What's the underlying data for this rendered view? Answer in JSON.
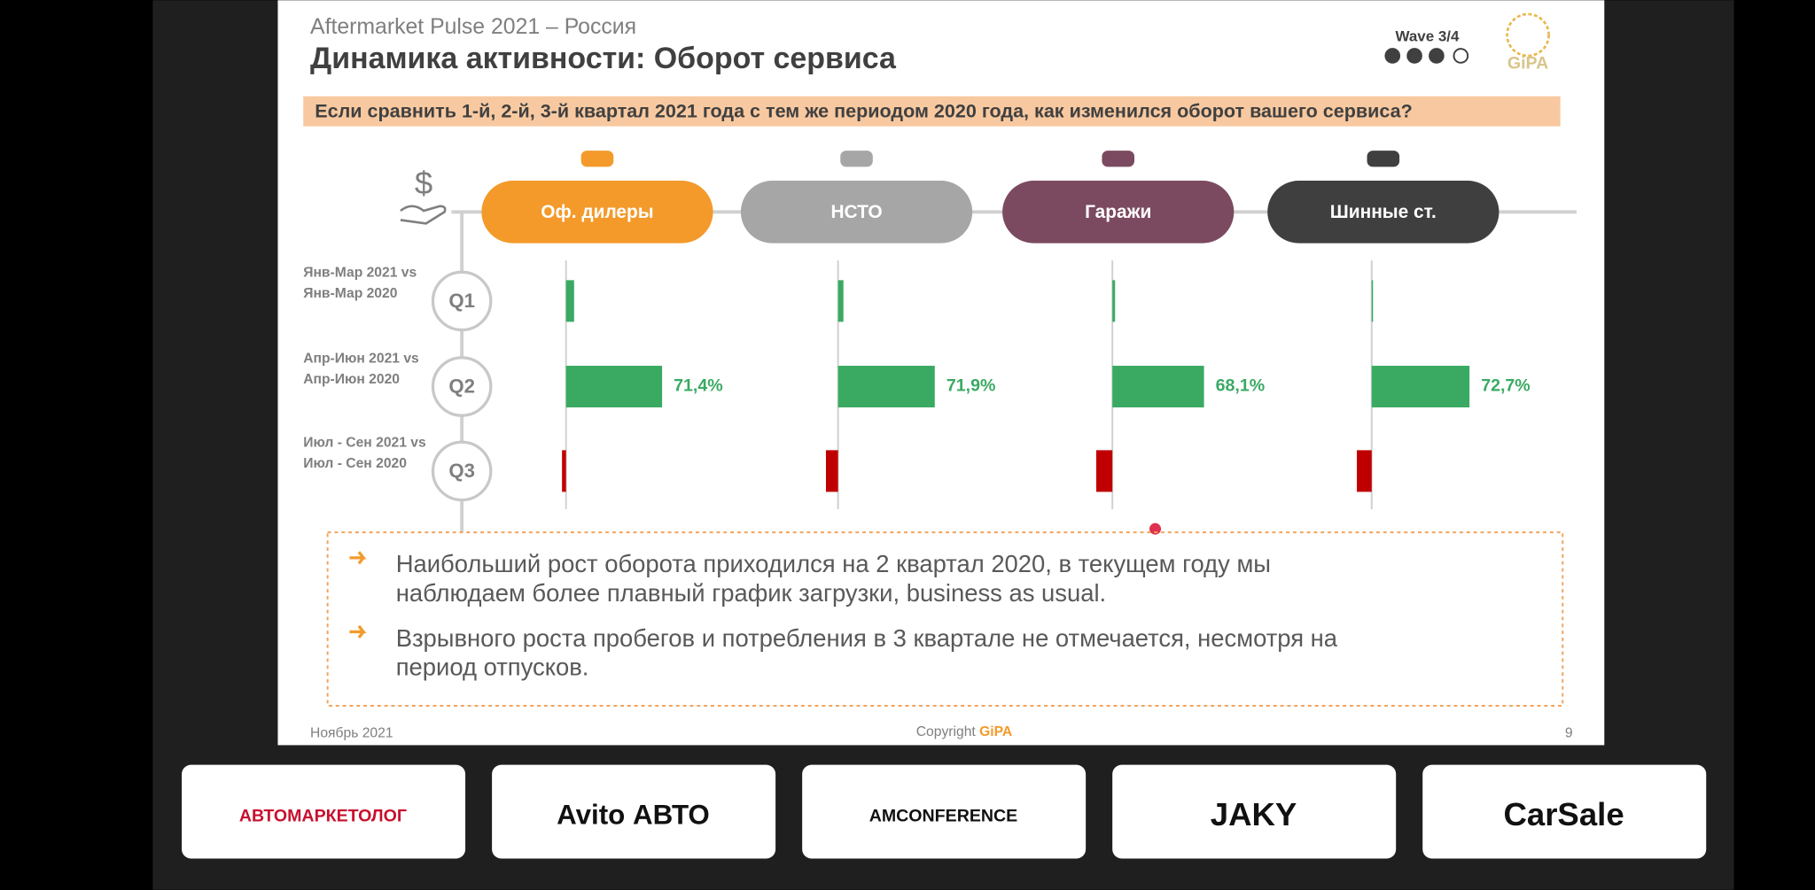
{
  "slide": {
    "subtitle": "Aftermarket Pulse 2021 – Россия",
    "title": "Динамика активности: Оборот сервиса",
    "wave": "Wave 3/4",
    "logo": "GiPA",
    "question": "Если сравнить 1-й, 2-й, 3-й квартал 2021 года с тем же периодом 2020 года, как изменился оборот вашего сервиса?",
    "quarters": [
      {
        "label": "Q1",
        "period": [
          "Янв-Мар 2021 vs",
          "Янв-Мар 2020"
        ]
      },
      {
        "label": "Q2",
        "period": [
          "Апр-Июн 2021 vs",
          "Апр-Июн 2020"
        ]
      },
      {
        "label": "Q3",
        "period": [
          "Июл - Сен 2021 vs",
          "Июл - Сен 2020"
        ]
      }
    ],
    "notes": [
      [
        "Наибольший рост оборота приходился на 2 квартал 2020, в текущем году мы",
        "наблюдаем более плавный график загрузки, business as usual."
      ],
      [
        "Взрывного роста пробегов и потребления в 3 квартале не отмечается, несмотря на",
        "период отпусков."
      ]
    ],
    "footer": {
      "date": "Ноябрь 2021",
      "copyright": "Copyright",
      "brand": "GiPA",
      "page": "9"
    }
  },
  "chart_data": [
    {
      "type": "bar",
      "title": "Оф. дилеры",
      "color": "#f39a2b",
      "values": [
        6,
        71.4,
        -3
      ],
      "value_labels": [
        null,
        "71,4%",
        null
      ],
      "positive_color": "#3aaa63",
      "negative_color": "#c00000",
      "xlim": [
        -20,
        90
      ]
    },
    {
      "type": "bar",
      "title": "НСТО",
      "color": "#a6a6a6",
      "values": [
        4,
        71.9,
        -9
      ],
      "value_labels": [
        null,
        "71,9%",
        null
      ],
      "positive_color": "#3aaa63",
      "negative_color": "#c00000",
      "xlim": [
        -20,
        90
      ]
    },
    {
      "type": "bar",
      "title": "Гаражи",
      "color": "#7b4a60",
      "values": [
        2,
        68.1,
        -12
      ],
      "value_labels": [
        null,
        "68,1%",
        null
      ],
      "positive_color": "#3aaa63",
      "negative_color": "#c00000",
      "xlim": [
        -20,
        90
      ]
    },
    {
      "type": "bar",
      "title": "Шинные ст.",
      "color": "#3f3f3f",
      "values": [
        1,
        72.7,
        -11
      ],
      "value_labels": [
        null,
        "72,7%",
        null
      ],
      "positive_color": "#3aaa63",
      "negative_color": "#c00000",
      "xlim": [
        -20,
        90
      ]
    }
  ],
  "sponsors": [
    "АВТОМАРКЕТОЛОГ",
    "Avito АВТО",
    "AMCONFERENCE",
    "JAKY",
    "CarSale"
  ]
}
